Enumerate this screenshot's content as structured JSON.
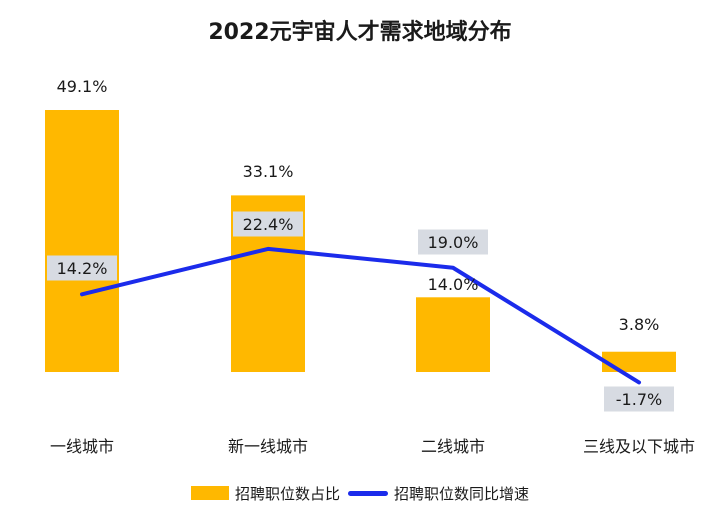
{
  "title": "2022元宇宙人才需求地域分布",
  "colors": {
    "bar": "#FFB800",
    "line": "#1B2BEB",
    "label_bg": "#D7DBE2",
    "text": "#1a1a1a"
  },
  "chart_data": {
    "type": "bar",
    "title": "2022元宇宙人才需求地域分布",
    "categories": [
      "一线城市",
      "新一线城市",
      "二线城市",
      "三线及以下城市"
    ],
    "series": [
      {
        "name": "招聘职位数占比",
        "type": "bar",
        "values": [
          49.1,
          33.1,
          14.0,
          3.8
        ],
        "labels": [
          "49.1%",
          "33.1%",
          "14.0%",
          "3.8%"
        ]
      },
      {
        "name": "招聘职位数同比增速",
        "type": "line",
        "values": [
          14.2,
          22.4,
          19.0,
          -1.7
        ],
        "labels": [
          "14.2%",
          "22.4%",
          "19.0%",
          "-1.7%"
        ]
      }
    ],
    "xlabel": "",
    "ylabel": "",
    "grid": false,
    "legend": "bottom"
  }
}
